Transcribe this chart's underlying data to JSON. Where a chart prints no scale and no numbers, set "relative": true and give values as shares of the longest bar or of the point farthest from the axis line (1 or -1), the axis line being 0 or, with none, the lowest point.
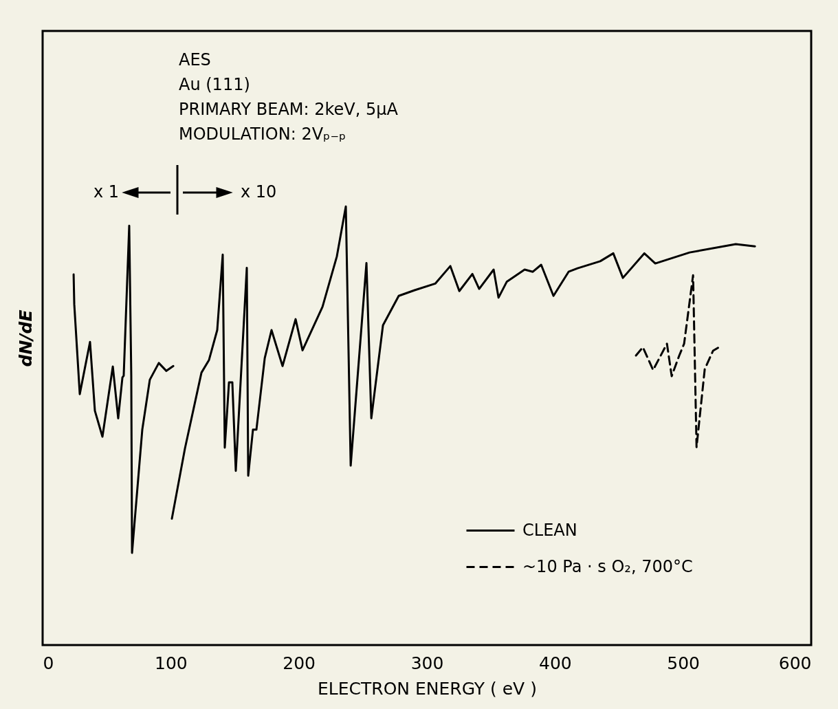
{
  "chart_data": {
    "type": "line",
    "relative": true,
    "xlabel": "ELECTRON ENERGY ( eV )",
    "ylabel": "dN/dE",
    "xlim": [
      0,
      600
    ],
    "xticks": [
      0,
      100,
      200,
      300,
      400,
      500,
      600
    ],
    "grid": false,
    "legend": "bottom right",
    "annotations": [
      "AES",
      "Au (111)",
      "PRIMARY BEAM: 2keV, 5μA",
      "MODULATION: 2Vₚ₋ₚ",
      "x 1",
      "x 10"
    ],
    "series": [
      {
        "name": "CLEAN",
        "color": "#000000",
        "line_style": "solid",
        "x": [
          24.2,
          24.7,
          29.0,
          37.0,
          40.8,
          46.7,
          54.8,
          59.0,
          62.3,
          63.3,
          67.6,
          69.2,
          69.8,
          77.8,
          83.7,
          90.7,
          96.6,
          102.0,
          101.5,
          100.9,
          111.1,
          124.0,
          129.9,
          136.3,
          140.6,
          142.2,
          145.5,
          148.1,
          150.8,
          159.4,
          160.5,
          164.2,
          166.9,
          173.4,
          178.7,
          187.3,
          197.5,
          202.9,
          218.5,
          229.7,
          236.7,
          240.5,
          252.8,
          256.6,
          265.7,
          278.0,
          290.4,
          306.5,
          318.3,
          325.3,
          335.5,
          340.8,
          352.1,
          355.9,
          362.3,
          376.3,
          382.7,
          389.2,
          398.8,
          410.6,
          417.6,
          435.3,
          445.5,
          453.0,
          469.7,
          478.3,
          505.1,
          541.1,
          556.1
        ],
        "values": [
          0.845,
          0.777,
          0.572,
          0.691,
          0.534,
          0.475,
          0.635,
          0.517,
          0.61,
          0.614,
          0.956,
          0.614,
          0.21,
          0.491,
          0.605,
          0.643,
          0.625,
          0.636,
          null,
          0.288,
          0.448,
          0.621,
          0.65,
          0.718,
          0.89,
          0.45,
          0.599,
          0.599,
          0.397,
          0.86,
          0.386,
          0.491,
          0.491,
          0.654,
          0.718,
          0.636,
          0.743,
          0.672,
          0.771,
          0.886,
          1.0,
          0.409,
          0.871,
          0.517,
          0.729,
          0.796,
          0.809,
          0.824,
          0.864,
          0.807,
          0.846,
          0.812,
          0.856,
          0.792,
          0.828,
          0.856,
          0.851,
          0.867,
          0.796,
          0.851,
          0.859,
          0.875,
          0.893,
          0.837,
          0.893,
          0.87,
          0.895,
          0.914,
          0.909
        ]
      },
      {
        "name": "~10 Pa · s O₂, 700°C",
        "color": "#000000",
        "line_style": "dashed",
        "x": [
          463.2,
          468.6,
          476.6,
          487.4,
          491.1,
          497.0,
          500.8,
          507.8,
          510.5,
          516.9,
          523.4,
          530.3
        ],
        "values": [
          0.66,
          0.679,
          0.627,
          0.687,
          0.613,
          0.66,
          0.687,
          0.843,
          0.451,
          0.629,
          0.671,
          0.683
        ]
      }
    ]
  }
}
